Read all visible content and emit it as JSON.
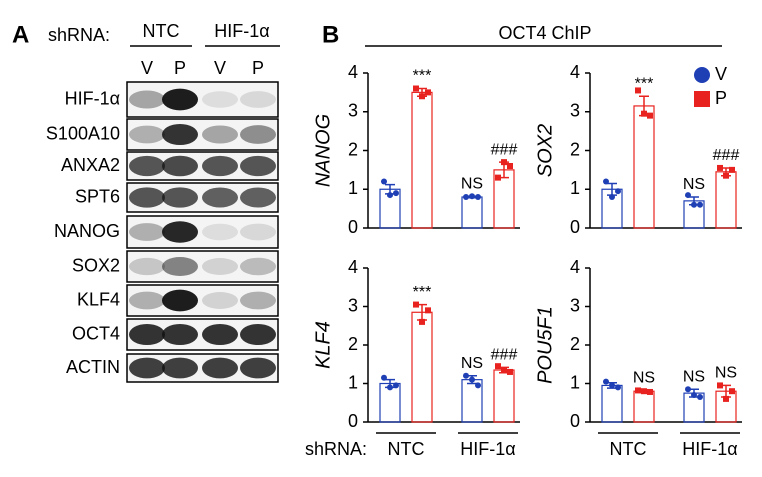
{
  "panel_a": {
    "label": "A",
    "shrna_label": "shRNA:",
    "groups": [
      "NTC",
      "HIF-1α"
    ],
    "lanes": [
      "V",
      "P",
      "V",
      "P"
    ],
    "rows": [
      "HIF-1α",
      "S100A10",
      "ANXA2",
      "SPT6",
      "NANOG",
      "SOX2",
      "KLF4",
      "OCT4",
      "ACTIN"
    ]
  },
  "panel_b": {
    "label": "B",
    "title": "OCT4 ChIP",
    "xlabel": "shRNA:"
  },
  "chart_data": [
    {
      "type": "bar",
      "ylabel": "NANOG",
      "categories": [
        null,
        null
      ],
      "ylim": [
        0,
        4
      ],
      "yticks": [
        0,
        1,
        2,
        3,
        4
      ],
      "series": [
        {
          "color": "#1f3fb5",
          "marker": "circle",
          "values": [
            1.0,
            0.8
          ],
          "errors": [
            0.12,
            0.02
          ],
          "points": [
            [
              1.2,
              0.85,
              0.9
            ],
            [
              0.8,
              0.82,
              0.8
            ]
          ],
          "annotations": [
            null,
            "NS"
          ]
        },
        {
          "color": "#e8231f",
          "marker": "square",
          "values": [
            3.5,
            1.5
          ],
          "errors": [
            0.1,
            0.2
          ],
          "points": [
            [
              3.6,
              3.4,
              3.5
            ],
            [
              1.3,
              1.7,
              1.6
            ]
          ],
          "annotations": [
            "***",
            "###"
          ]
        }
      ]
    },
    {
      "type": "bar",
      "ylabel": "SOX2",
      "categories": [
        null,
        null
      ],
      "ylim": [
        0,
        4
      ],
      "yticks": [
        0,
        1,
        2,
        3,
        4
      ],
      "legend": "upper right",
      "series": [
        {
          "name": "V",
          "color": "#1f3fb5",
          "marker": "circle",
          "values": [
            1.0,
            0.7
          ],
          "errors": [
            0.15,
            0.1
          ],
          "points": [
            [
              1.2,
              0.8,
              0.95
            ],
            [
              0.85,
              0.6,
              0.6
            ]
          ],
          "annotations": [
            null,
            "NS"
          ]
        },
        {
          "name": "P",
          "color": "#e8231f",
          "marker": "square",
          "values": [
            3.15,
            1.45
          ],
          "errors": [
            0.25,
            0.1
          ],
          "points": [
            [
              3.55,
              2.95,
              2.9
            ],
            [
              1.55,
              1.35,
              1.5
            ]
          ],
          "annotations": [
            "***",
            "###"
          ]
        }
      ]
    },
    {
      "type": "bar",
      "ylabel": "KLF4",
      "categories": [
        "NTC",
        "HIF-1α"
      ],
      "ylim": [
        0,
        4
      ],
      "yticks": [
        0,
        1,
        2,
        3,
        4
      ],
      "series": [
        {
          "color": "#1f3fb5",
          "marker": "circle",
          "values": [
            1.0,
            1.1
          ],
          "errors": [
            0.1,
            0.1
          ],
          "points": [
            [
              1.15,
              0.9,
              0.95
            ],
            [
              1.2,
              1.1,
              0.95
            ]
          ],
          "annotations": [
            null,
            "NS"
          ]
        },
        {
          "color": "#e8231f",
          "marker": "square",
          "values": [
            2.85,
            1.35
          ],
          "errors": [
            0.2,
            0.07
          ],
          "points": [
            [
              3.05,
              2.6,
              2.9
            ],
            [
              1.45,
              1.35,
              1.3
            ]
          ],
          "annotations": [
            "***",
            "###"
          ]
        }
      ]
    },
    {
      "type": "bar",
      "ylabel": "POU5F1",
      "categories": [
        "NTC",
        "HIF-1α"
      ],
      "ylim": [
        0,
        4
      ],
      "yticks": [
        0,
        1,
        2,
        3,
        4
      ],
      "series": [
        {
          "color": "#1f3fb5",
          "marker": "circle",
          "values": [
            0.95,
            0.75
          ],
          "errors": [
            0.07,
            0.1
          ],
          "points": [
            [
              1.05,
              0.95,
              0.9
            ],
            [
              0.85,
              0.7,
              0.65
            ]
          ],
          "annotations": [
            null,
            "NS"
          ]
        },
        {
          "color": "#e8231f",
          "marker": "square",
          "values": [
            0.8,
            0.8
          ],
          "errors": [
            0.03,
            0.15
          ],
          "points": [
            [
              0.82,
              0.8,
              0.78
            ],
            [
              0.95,
              0.6,
              0.8
            ]
          ],
          "annotations": [
            "NS",
            "NS"
          ]
        }
      ]
    }
  ]
}
